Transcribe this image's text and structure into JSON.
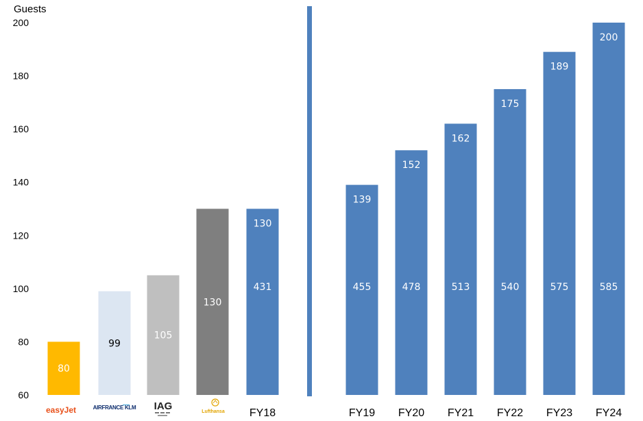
{
  "chart_data": {
    "type": "bar",
    "ylabel": "Guests",
    "ylim": [
      60,
      200
    ],
    "yticks": [
      60,
      80,
      100,
      120,
      140,
      160,
      180,
      200
    ],
    "bars": [
      {
        "category": "easyJet",
        "label_kind": "logo",
        "icon": "easyjet-logo",
        "value": 80,
        "value_label": "80",
        "color": "#ffb900",
        "label_color": "#ffffff"
      },
      {
        "category": "AIRFRANCE KLM",
        "label_kind": "logo",
        "icon": "airfrance-klm-logo",
        "value": 99,
        "value_label": "99",
        "color": "#dce6f2",
        "label_color": "#000000"
      },
      {
        "category": "IAG",
        "label_kind": "logo",
        "icon": "iag-logo",
        "value": 105,
        "value_label": "105",
        "color": "#bfbfbf",
        "label_color": "#ffffff"
      },
      {
        "category": "Lufthansa",
        "label_kind": "logo",
        "icon": "lufthansa-logo",
        "value": 130,
        "value_label": "130",
        "color": "#7f7f7f",
        "label_color": "#ffffff"
      },
      {
        "category": "FY18",
        "label_kind": "text",
        "value": 130,
        "value_label": "130",
        "secondary_label": "431",
        "color": "#4f81bd",
        "label_color": "#ffffff"
      },
      {
        "category": "FY19",
        "label_kind": "text",
        "value": 139,
        "value_label": "139",
        "secondary_label": "455",
        "color": "#4f81bd",
        "label_color": "#ffffff"
      },
      {
        "category": "FY20",
        "label_kind": "text",
        "value": 152,
        "value_label": "152",
        "secondary_label": "478",
        "color": "#4f81bd",
        "label_color": "#ffffff"
      },
      {
        "category": "FY21",
        "label_kind": "text",
        "value": 162,
        "value_label": "162",
        "secondary_label": "513",
        "color": "#4f81bd",
        "label_color": "#ffffff"
      },
      {
        "category": "FY22",
        "label_kind": "text",
        "value": 175,
        "value_label": "175",
        "secondary_label": "540",
        "color": "#4f81bd",
        "label_color": "#ffffff"
      },
      {
        "category": "FY23",
        "label_kind": "text",
        "value": 189,
        "value_label": "189",
        "secondary_label": "575",
        "color": "#4f81bd",
        "label_color": "#ffffff"
      },
      {
        "category": "FY24",
        "label_kind": "text",
        "value": 200,
        "value_label": "200",
        "secondary_label": "585",
        "color": "#4f81bd",
        "label_color": "#ffffff"
      }
    ],
    "divider_color": "#4f81bd",
    "grid": false,
    "legend": "none"
  }
}
